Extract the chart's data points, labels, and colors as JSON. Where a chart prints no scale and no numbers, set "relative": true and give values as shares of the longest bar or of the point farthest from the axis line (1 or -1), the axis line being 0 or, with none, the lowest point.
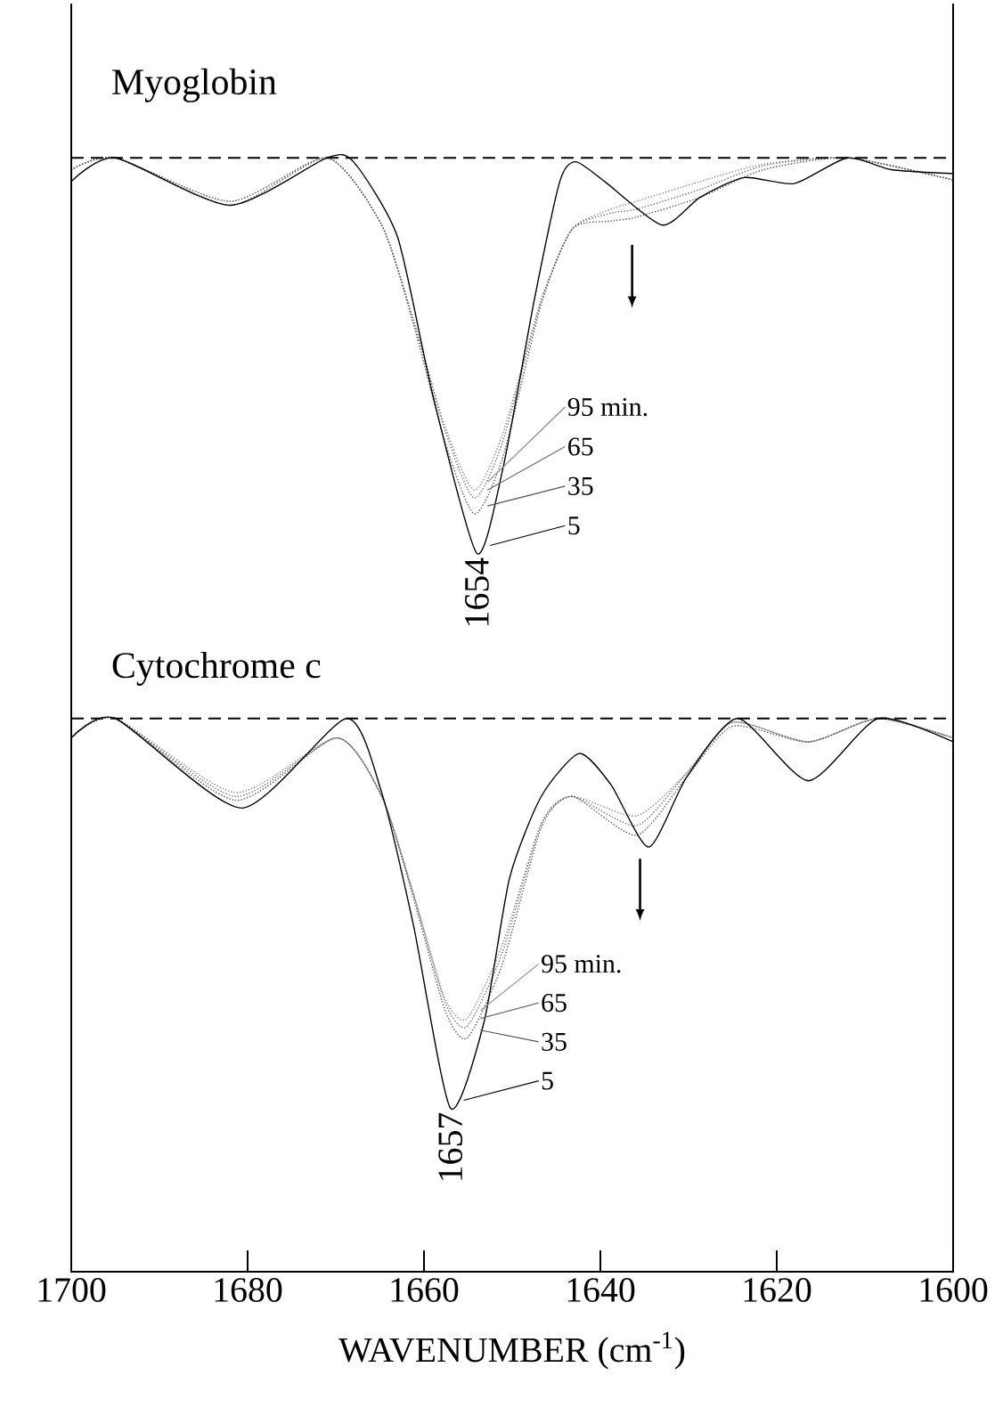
{
  "chart_data": [
    {
      "type": "line",
      "title": "Myoglobin",
      "relative": true,
      "xlim": [
        1700,
        1600
      ],
      "tick_labels": false,
      "legend": "center",
      "marker": "none",
      "annotations": [
        {
          "text": "1654",
          "x": 1654,
          "y": -1
        }
      ],
      "ref_lines": [
        {
          "axis": "y",
          "value": 0,
          "line_style": "dashed",
          "color": "#000000"
        }
      ],
      "series": [
        {
          "name": "95 min.",
          "color": "#8a8a8a",
          "line_style": "dotted",
          "x": [
            1700,
            1695,
            1682,
            1671,
            1664.8,
            1661.2,
            1657.6,
            1654.3,
            1651.1,
            1646.7,
            1643.2,
            1638.8,
            1635.9,
            1628.7,
            1621.5,
            1612,
            1600
          ],
          "values": [
            -0.03,
            0,
            -0.11,
            0,
            -0.17,
            -0.41,
            -0.68,
            -0.84,
            -0.7,
            -0.36,
            -0.18,
            -0.13,
            -0.11,
            -0.06,
            -0.016,
            0,
            -0.056
          ]
        },
        {
          "name": "65",
          "color": "#707070",
          "line_style": "dotted",
          "x": [
            1700,
            1695,
            1682,
            1671,
            1664.8,
            1661.2,
            1657.6,
            1654.3,
            1651.1,
            1646.7,
            1643.2,
            1638.8,
            1635.9,
            1628.7,
            1621.5,
            1612,
            1600
          ],
          "values": [
            -0.03,
            0,
            -0.11,
            0,
            -0.17,
            -0.41,
            -0.69,
            -0.86,
            -0.72,
            -0.36,
            -0.18,
            -0.14,
            -0.13,
            -0.08,
            -0.02,
            0,
            -0.056
          ]
        },
        {
          "name": "35",
          "color": "#555555",
          "line_style": "dotted",
          "x": [
            1700,
            1695,
            1682,
            1671,
            1664.8,
            1661.2,
            1657.6,
            1654.3,
            1651.1,
            1646.7,
            1643.2,
            1638.8,
            1635.9,
            1628.7,
            1621.5,
            1612,
            1600
          ],
          "values": [
            -0.03,
            0,
            -0.12,
            0,
            -0.17,
            -0.42,
            -0.72,
            -0.9,
            -0.76,
            -0.37,
            -0.18,
            -0.16,
            -0.15,
            -0.1,
            -0.03,
            0,
            -0.056
          ]
        },
        {
          "name": "5",
          "color": "#000000",
          "line_style": "solid",
          "x": [
            1700,
            1695,
            1682,
            1671,
            1668,
            1663,
            1659,
            1654,
            1651,
            1647.5,
            1644.6,
            1642.8,
            1639.5,
            1633,
            1628.7,
            1623.7,
            1618,
            1612,
            1607,
            1600
          ],
          "values": [
            -0.06,
            0,
            -0.12,
            0,
            -0.01,
            -0.2,
            -0.6,
            -1,
            -0.78,
            -0.36,
            -0.06,
            -0.01,
            -0.06,
            -0.17,
            -0.1,
            -0.05,
            -0.065,
            0,
            -0.03,
            -0.04
          ]
        }
      ]
    },
    {
      "type": "line",
      "title": "Cytochrome c",
      "relative": true,
      "xlim": [
        1700,
        1600
      ],
      "xticks": [
        1700,
        1680,
        1660,
        1640,
        1620,
        1600
      ],
      "xlabel": "WAVENUMBER (cm$^{-1}$)",
      "tick_labels": "x",
      "legend": "center",
      "marker": "none",
      "annotations": [
        {
          "text": "1657",
          "x": 1657,
          "y": -1
        }
      ],
      "ref_lines": [
        {
          "axis": "y",
          "value": 0,
          "line_style": "dashed",
          "color": "#000000"
        }
      ],
      "series": [
        {
          "name": "95 min.",
          "color": "#8a8a8a",
          "line_style": "dotted",
          "x": [
            1700,
            1695,
            1681.4,
            1669.9,
            1664.8,
            1661.2,
            1657.6,
            1655.1,
            1651.1,
            1646.7,
            1643.2,
            1635.9,
            1630.2,
            1625,
            1616.4,
            1608.5,
            1600
          ],
          "values": [
            -0.05,
            0,
            -0.19,
            -0.05,
            -0.2,
            -0.45,
            -0.72,
            -0.77,
            -0.58,
            -0.27,
            -0.2,
            -0.25,
            -0.14,
            -0.01,
            -0.06,
            0,
            -0.05
          ]
        },
        {
          "name": "65",
          "color": "#707070",
          "line_style": "dotted",
          "x": [
            1700,
            1695,
            1681.4,
            1669.9,
            1664.8,
            1661.2,
            1657.6,
            1655.1,
            1651.1,
            1646.7,
            1643.2,
            1635.9,
            1630.2,
            1625,
            1616.4,
            1608.5,
            1600
          ],
          "values": [
            -0.05,
            0,
            -0.2,
            -0.05,
            -0.2,
            -0.45,
            -0.73,
            -0.79,
            -0.6,
            -0.27,
            -0.2,
            -0.275,
            -0.14,
            -0.01,
            -0.06,
            0,
            -0.05
          ]
        },
        {
          "name": "35",
          "color": "#555555",
          "line_style": "dotted",
          "x": [
            1700,
            1695,
            1681.4,
            1669.9,
            1664.8,
            1661.2,
            1657.6,
            1655.1,
            1651.1,
            1646.7,
            1643.2,
            1635.9,
            1630.2,
            1625,
            1616.4,
            1608.5,
            1600
          ],
          "values": [
            -0.05,
            0,
            -0.21,
            -0.05,
            -0.2,
            -0.46,
            -0.75,
            -0.82,
            -0.63,
            -0.28,
            -0.2,
            -0.3,
            -0.15,
            -0.02,
            -0.06,
            0,
            -0.05
          ]
        },
        {
          "name": "5",
          "color": "#000000",
          "line_style": "solid",
          "x": [
            1700,
            1695,
            1680.7,
            1668.8,
            1664.8,
            1661.2,
            1657,
            1653.2,
            1650.3,
            1646.7,
            1642.4,
            1638.8,
            1634.5,
            1630.2,
            1624.4,
            1616.4,
            1608.5,
            1600
          ],
          "values": [
            -0.05,
            0,
            -0.23,
            0,
            -0.19,
            -0.53,
            -1,
            -0.78,
            -0.41,
            -0.2,
            -0.09,
            -0.17,
            -0.33,
            -0.15,
            0,
            -0.16,
            0,
            -0.06
          ]
        }
      ]
    }
  ]
}
